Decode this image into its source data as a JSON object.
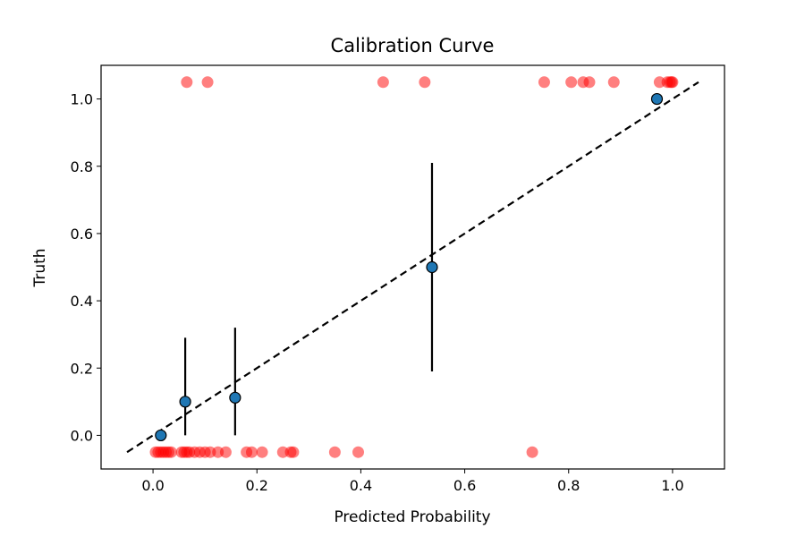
{
  "chart_data": {
    "type": "scatter",
    "title": "Calibration Curve",
    "xlabel": "Predicted Probability",
    "ylabel": "Truth",
    "xlim": [
      -0.1,
      1.1
    ],
    "ylim": [
      -0.1,
      1.1
    ],
    "x_ticks": [
      "0.0",
      "0.2",
      "0.4",
      "0.6",
      "0.8",
      "1.0"
    ],
    "y_ticks": [
      "0.0",
      "0.2",
      "0.4",
      "0.6",
      "0.8",
      "1.0"
    ],
    "grid": false,
    "reference_line": {
      "x": [
        -0.05,
        1.05
      ],
      "y": [
        -0.05,
        1.05
      ],
      "style": "dashed",
      "color": "#000000"
    },
    "calibration_points": {
      "color": "#1f77b4",
      "points": [
        {
          "x": 0.015,
          "y": 0.0,
          "err_low": 0.0,
          "err_high": 0.0
        },
        {
          "x": 0.062,
          "y": 0.1,
          "err_low": 0.0,
          "err_high": 0.29
        },
        {
          "x": 0.158,
          "y": 0.112,
          "err_low": 0.0,
          "err_high": 0.32
        },
        {
          "x": 0.537,
          "y": 0.5,
          "err_low": 0.19,
          "err_high": 0.81
        },
        {
          "x": 0.97,
          "y": 1.0,
          "err_low": 1.0,
          "err_high": 1.0
        }
      ]
    },
    "observations": {
      "color": "#ff0000",
      "positive_y": 1.05,
      "negative_y": -0.05,
      "positive_x": [
        0.065,
        0.105,
        0.443,
        0.523,
        0.753,
        0.805,
        0.828,
        0.84,
        0.887,
        0.975,
        0.99,
        0.995,
        0.998,
        1.0
      ],
      "negative_x": [
        0.005,
        0.01,
        0.015,
        0.02,
        0.025,
        0.03,
        0.035,
        0.055,
        0.06,
        0.065,
        0.07,
        0.08,
        0.09,
        0.1,
        0.11,
        0.125,
        0.14,
        0.18,
        0.19,
        0.21,
        0.25,
        0.265,
        0.27,
        0.35,
        0.395,
        0.73
      ]
    }
  }
}
